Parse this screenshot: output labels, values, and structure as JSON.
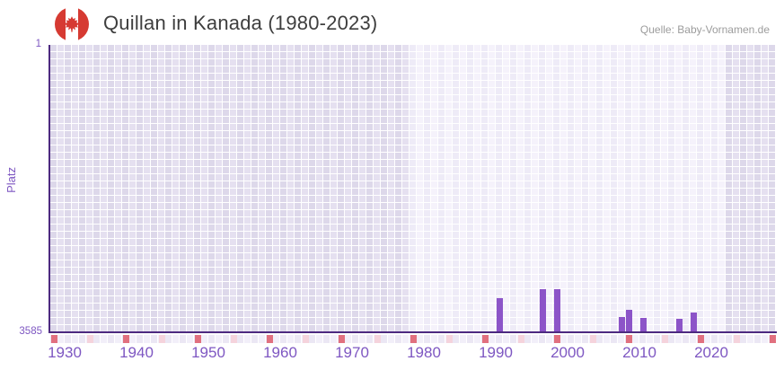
{
  "header": {
    "title": "Quillan in Kanada (1980-2023)",
    "source": "Quelle: Baby-Vornamen.de"
  },
  "icons": {
    "flag": "canada-flag-icon"
  },
  "y_axis": {
    "label": "Platz",
    "ticks": [
      "1",
      "3585"
    ]
  },
  "x_axis": {
    "ticks": [
      1930,
      1940,
      1950,
      1960,
      1970,
      1980,
      1990,
      2000,
      2010,
      2020
    ]
  },
  "chart_data": {
    "type": "bar",
    "title": "Quillan in Kanada (1980-2023)",
    "xlabel": "",
    "ylabel": "Platz",
    "y_inverted": true,
    "ylim": [
      1,
      3585
    ],
    "x_axis_range": [
      1928,
      2028
    ],
    "x_tick_years": [
      1930,
      1940,
      1950,
      1960,
      1970,
      1980,
      1990,
      2000,
      2010,
      2020
    ],
    "series": [
      {
        "name": "Quillan",
        "points": [
          {
            "year": 1990,
            "platz": 3160
          },
          {
            "year": 1996,
            "platz": 3042
          },
          {
            "year": 1998,
            "platz": 3049
          },
          {
            "year": 2007,
            "platz": 3398
          },
          {
            "year": 2008,
            "platz": 3305
          },
          {
            "year": 2010,
            "platz": 3406
          },
          {
            "year": 2015,
            "platz": 3417
          },
          {
            "year": 2017,
            "platz": 3342
          }
        ]
      }
    ],
    "data_band_years": [
      1978,
      2021
    ],
    "bottom_marker_red_years": [
      1928,
      1938,
      1948,
      1958,
      1968,
      1978,
      1988,
      1998,
      2008,
      2018,
      2028
    ],
    "bottom_marker_pink_years": [
      1933,
      1943,
      1953,
      1963,
      1973,
      1983,
      1993,
      2003,
      2013,
      2023
    ],
    "grid": true,
    "legend": false
  },
  "colors": {
    "bar": "#8c54c8",
    "axis_line": "#4d2a80",
    "axis_text": "#7e57c2",
    "title_text": "#3e3e3e",
    "source_text": "#9c9c9c",
    "grid_dark_a": "#ddd8ea",
    "grid_dark_b": "#e5e0f0",
    "grid_light_a": "#eeebf7",
    "grid_light_b": "#f5f2fb",
    "marker_row_a": "#ebe7f4",
    "marker_row_b": "#f2eff9",
    "marker_red": "#e1707f",
    "marker_pink": "#f5d3dc",
    "flag_red": "#d63a32"
  }
}
